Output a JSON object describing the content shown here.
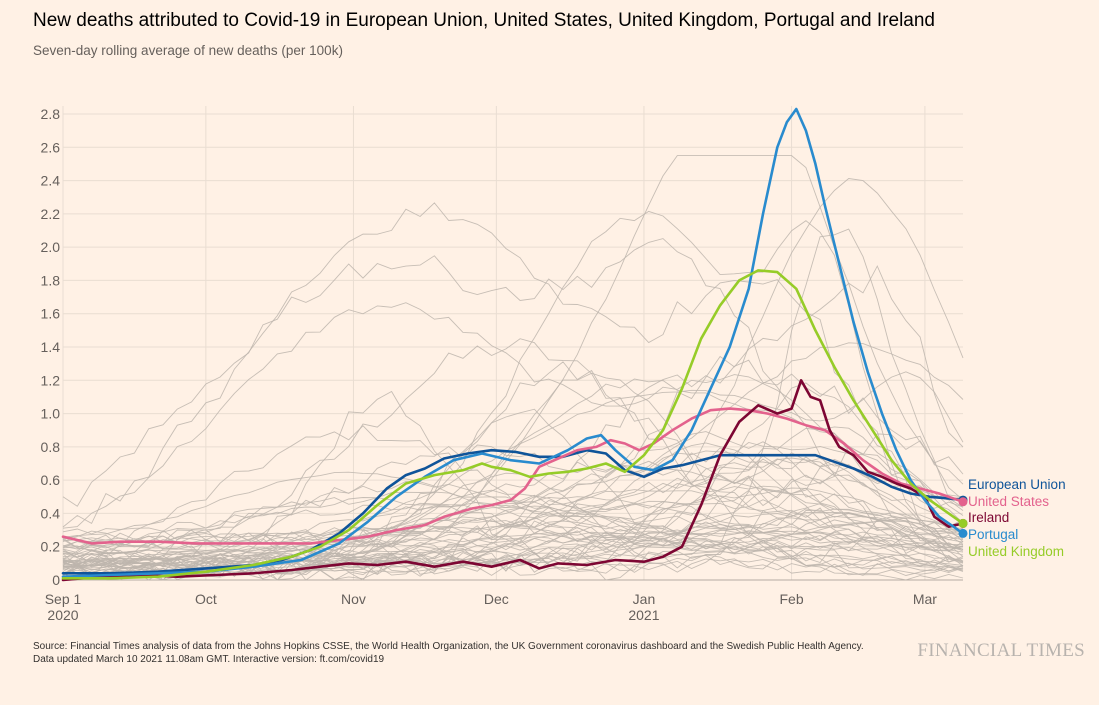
{
  "header": {
    "title": "New deaths attributed to Covid-19 in European Union, United States, United Kingdom, Portugal and Ireland",
    "subtitle": "Seven-day rolling average of new deaths (per 100k)"
  },
  "footer": {
    "source": "Source: Financial Times analysis of data from the Johns Hopkins CSSE, the World Health Organization, the UK Government coronavirus dashboard and the Swedish Public Health Agency.",
    "updated": "Data updated March 10 2021 11.08am GMT. Interactive version: ft.com/covid19",
    "brand": "FINANCIAL TIMES"
  },
  "chart_data": {
    "type": "line",
    "title": "New deaths attributed to Covid-19 in European Union, United States, United Kingdom, Portugal and Ireland",
    "subtitle": "Seven-day rolling average of new deaths (per 100k)",
    "xlabel": "",
    "ylabel": "",
    "x_unit": "days since Sep 1 2020",
    "xlim": [
      0,
      189
    ],
    "ylim": [
      0,
      2.8
    ],
    "yticks": [
      0,
      0.2,
      0.4,
      0.6,
      0.8,
      1.0,
      1.2,
      1.4,
      1.6,
      1.8,
      2.0,
      2.2,
      2.4,
      2.6,
      2.8
    ],
    "ytick_labels": [
      "0",
      "0.2",
      "0.4",
      "0.6",
      "0.8",
      "1.0",
      "1.2",
      "1.4",
      "1.6",
      "1.8",
      "2.0",
      "2.2",
      "2.4",
      "2.6",
      "2.8"
    ],
    "xticks": [
      {
        "day": 0,
        "label": "Sep 1",
        "sublabel": "2020"
      },
      {
        "day": 30,
        "label": "Oct",
        "sublabel": ""
      },
      {
        "day": 61,
        "label": "Nov",
        "sublabel": ""
      },
      {
        "day": 91,
        "label": "Dec",
        "sublabel": ""
      },
      {
        "day": 122,
        "label": "Jan",
        "sublabel": "2021"
      },
      {
        "day": 153,
        "label": "Feb",
        "sublabel": ""
      },
      {
        "day": 181,
        "label": "Mar",
        "sublabel": ""
      }
    ],
    "grid": true,
    "legend": "end-of-line labels",
    "colors": {
      "background": "#FFF1E5",
      "grid": "#E9DDD2",
      "background_series": "#BDB5AD",
      "axis_text": "#66605C"
    },
    "series": [
      {
        "name": "European Union",
        "color": "#0F5499",
        "points": [
          [
            0,
            0.04
          ],
          [
            10,
            0.04
          ],
          [
            20,
            0.05
          ],
          [
            30,
            0.07
          ],
          [
            40,
            0.09
          ],
          [
            46,
            0.12
          ],
          [
            52,
            0.18
          ],
          [
            58,
            0.28
          ],
          [
            63,
            0.4
          ],
          [
            68,
            0.55
          ],
          [
            72,
            0.63
          ],
          [
            76,
            0.67
          ],
          [
            80,
            0.73
          ],
          [
            85,
            0.76
          ],
          [
            90,
            0.78
          ],
          [
            95,
            0.77
          ],
          [
            100,
            0.74
          ],
          [
            105,
            0.74
          ],
          [
            110,
            0.78
          ],
          [
            114,
            0.76
          ],
          [
            118,
            0.66
          ],
          [
            122,
            0.62
          ],
          [
            126,
            0.67
          ],
          [
            130,
            0.69
          ],
          [
            134,
            0.72
          ],
          [
            138,
            0.75
          ],
          [
            142,
            0.75
          ],
          [
            146,
            0.75
          ],
          [
            150,
            0.75
          ],
          [
            154,
            0.75
          ],
          [
            158,
            0.75
          ],
          [
            162,
            0.71
          ],
          [
            166,
            0.67
          ],
          [
            170,
            0.62
          ],
          [
            174,
            0.56
          ],
          [
            178,
            0.52
          ],
          [
            182,
            0.5
          ],
          [
            186,
            0.49
          ],
          [
            189,
            0.48
          ]
        ]
      },
      {
        "name": "United States",
        "color": "#E3628D",
        "points": [
          [
            0,
            0.26
          ],
          [
            6,
            0.22
          ],
          [
            12,
            0.23
          ],
          [
            20,
            0.23
          ],
          [
            28,
            0.22
          ],
          [
            36,
            0.22
          ],
          [
            44,
            0.22
          ],
          [
            52,
            0.22
          ],
          [
            58,
            0.24
          ],
          [
            64,
            0.26
          ],
          [
            70,
            0.3
          ],
          [
            76,
            0.33
          ],
          [
            80,
            0.38
          ],
          [
            86,
            0.43
          ],
          [
            90,
            0.45
          ],
          [
            94,
            0.48
          ],
          [
            97,
            0.55
          ],
          [
            100,
            0.68
          ],
          [
            104,
            0.73
          ],
          [
            108,
            0.78
          ],
          [
            112,
            0.8
          ],
          [
            115,
            0.84
          ],
          [
            118,
            0.82
          ],
          [
            121,
            0.78
          ],
          [
            124,
            0.82
          ],
          [
            128,
            0.9
          ],
          [
            132,
            0.97
          ],
          [
            136,
            1.02
          ],
          [
            140,
            1.03
          ],
          [
            144,
            1.02
          ],
          [
            148,
            1.0
          ],
          [
            152,
            0.97
          ],
          [
            156,
            0.93
          ],
          [
            160,
            0.9
          ],
          [
            164,
            0.82
          ],
          [
            168,
            0.72
          ],
          [
            172,
            0.64
          ],
          [
            176,
            0.58
          ],
          [
            180,
            0.55
          ],
          [
            184,
            0.52
          ],
          [
            189,
            0.47
          ]
        ]
      },
      {
        "name": "Ireland",
        "color": "#7D0633",
        "points": [
          [
            0,
            0.0
          ],
          [
            8,
            0.02
          ],
          [
            16,
            0.03
          ],
          [
            24,
            0.02
          ],
          [
            32,
            0.03
          ],
          [
            40,
            0.04
          ],
          [
            48,
            0.06
          ],
          [
            54,
            0.08
          ],
          [
            60,
            0.1
          ],
          [
            66,
            0.09
          ],
          [
            72,
            0.11
          ],
          [
            78,
            0.08
          ],
          [
            84,
            0.11
          ],
          [
            90,
            0.08
          ],
          [
            96,
            0.12
          ],
          [
            100,
            0.07
          ],
          [
            104,
            0.1
          ],
          [
            110,
            0.09
          ],
          [
            116,
            0.12
          ],
          [
            122,
            0.11
          ],
          [
            126,
            0.14
          ],
          [
            130,
            0.2
          ],
          [
            134,
            0.45
          ],
          [
            138,
            0.75
          ],
          [
            142,
            0.95
          ],
          [
            146,
            1.05
          ],
          [
            150,
            1.0
          ],
          [
            153,
            1.03
          ],
          [
            155,
            1.2
          ],
          [
            157,
            1.1
          ],
          [
            159,
            1.08
          ],
          [
            161,
            0.9
          ],
          [
            163,
            0.8
          ],
          [
            166,
            0.75
          ],
          [
            169,
            0.65
          ],
          [
            172,
            0.62
          ],
          [
            175,
            0.58
          ],
          [
            178,
            0.55
          ],
          [
            181,
            0.5
          ],
          [
            183,
            0.38
          ],
          [
            186,
            0.32
          ],
          [
            189,
            0.34
          ]
        ]
      },
      {
        "name": "Portugal",
        "color": "#298BCE",
        "points": [
          [
            0,
            0.02
          ],
          [
            10,
            0.03
          ],
          [
            20,
            0.04
          ],
          [
            30,
            0.05
          ],
          [
            40,
            0.08
          ],
          [
            50,
            0.12
          ],
          [
            58,
            0.22
          ],
          [
            64,
            0.35
          ],
          [
            70,
            0.5
          ],
          [
            76,
            0.62
          ],
          [
            82,
            0.72
          ],
          [
            88,
            0.76
          ],
          [
            94,
            0.72
          ],
          [
            100,
            0.7
          ],
          [
            106,
            0.78
          ],
          [
            110,
            0.85
          ],
          [
            113,
            0.87
          ],
          [
            116,
            0.78
          ],
          [
            120,
            0.68
          ],
          [
            124,
            0.66
          ],
          [
            128,
            0.72
          ],
          [
            132,
            0.9
          ],
          [
            136,
            1.15
          ],
          [
            140,
            1.4
          ],
          [
            144,
            1.75
          ],
          [
            147,
            2.2
          ],
          [
            150,
            2.6
          ],
          [
            152,
            2.75
          ],
          [
            154,
            2.83
          ],
          [
            156,
            2.7
          ],
          [
            158,
            2.5
          ],
          [
            160,
            2.25
          ],
          [
            163,
            1.9
          ],
          [
            166,
            1.55
          ],
          [
            169,
            1.25
          ],
          [
            172,
            1.0
          ],
          [
            175,
            0.78
          ],
          [
            178,
            0.6
          ],
          [
            181,
            0.48
          ],
          [
            184,
            0.38
          ],
          [
            187,
            0.32
          ],
          [
            189,
            0.28
          ]
        ]
      },
      {
        "name": "United Kingdom",
        "color": "#96CC28",
        "points": [
          [
            0,
            0.01
          ],
          [
            10,
            0.01
          ],
          [
            20,
            0.02
          ],
          [
            30,
            0.05
          ],
          [
            40,
            0.09
          ],
          [
            48,
            0.14
          ],
          [
            54,
            0.2
          ],
          [
            60,
            0.3
          ],
          [
            66,
            0.45
          ],
          [
            72,
            0.58
          ],
          [
            78,
            0.63
          ],
          [
            84,
            0.66
          ],
          [
            88,
            0.7
          ],
          [
            90,
            0.68
          ],
          [
            94,
            0.66
          ],
          [
            98,
            0.62
          ],
          [
            102,
            0.64
          ],
          [
            106,
            0.65
          ],
          [
            110,
            0.67
          ],
          [
            114,
            0.7
          ],
          [
            118,
            0.65
          ],
          [
            122,
            0.75
          ],
          [
            126,
            0.9
          ],
          [
            130,
            1.15
          ],
          [
            134,
            1.45
          ],
          [
            138,
            1.65
          ],
          [
            142,
            1.8
          ],
          [
            146,
            1.86
          ],
          [
            150,
            1.85
          ],
          [
            154,
            1.75
          ],
          [
            158,
            1.5
          ],
          [
            162,
            1.28
          ],
          [
            166,
            1.08
          ],
          [
            170,
            0.9
          ],
          [
            174,
            0.72
          ],
          [
            178,
            0.58
          ],
          [
            182,
            0.48
          ],
          [
            186,
            0.4
          ],
          [
            189,
            0.34
          ]
        ]
      }
    ]
  }
}
